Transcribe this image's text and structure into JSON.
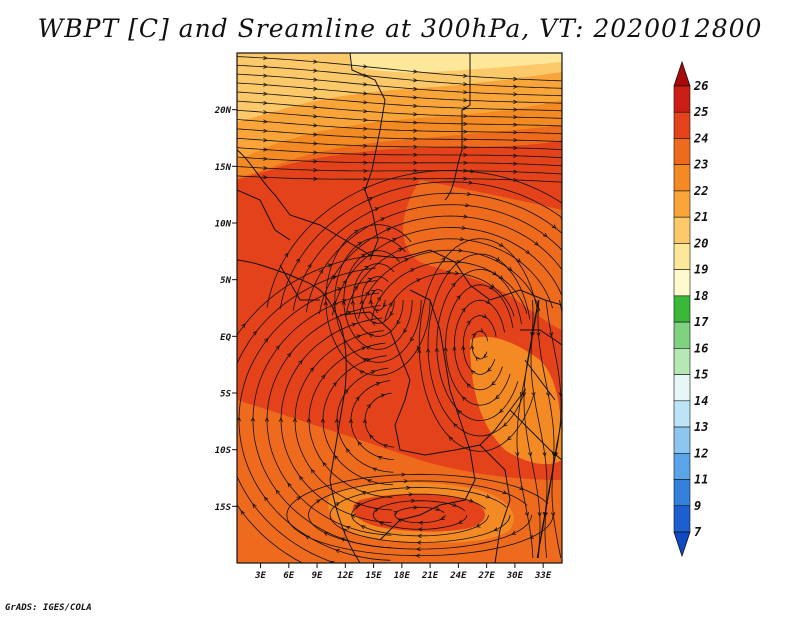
{
  "title": "WBPT [C] and Sreamline at 300hPa, VT: 2020012800",
  "credit": "GrADS: IGES/COLA",
  "colors": {
    "c19": "#fde79a",
    "c20": "#fbc96a",
    "c21": "#f9a53a",
    "c22": "#f48a23",
    "c23": "#ee6a1d",
    "c24": "#e3421a",
    "c25": "#cc1e14",
    "c26": "#a80a0a"
  },
  "chart_data": {
    "type": "map",
    "lat_ticks": [
      "20N",
      "15N",
      "10N",
      "5N",
      "EQ",
      "5S",
      "10S",
      "15S"
    ],
    "lat_values": [
      20,
      15,
      10,
      5,
      0,
      -5,
      -10,
      -15
    ],
    "lon_ticks": [
      "3E",
      "6E",
      "9E",
      "12E",
      "15E",
      "18E",
      "21E",
      "24E",
      "27E",
      "30E",
      "33E"
    ],
    "lon_values": [
      3,
      6,
      9,
      12,
      15,
      18,
      21,
      24,
      27,
      30,
      33
    ],
    "lon_range": [
      0.5,
      35
    ],
    "lat_range": [
      -20,
      25
    ],
    "colorbar": {
      "labels": [
        "26",
        "25",
        "24",
        "23",
        "22",
        "21",
        "20",
        "19",
        "18",
        "17",
        "16",
        "15",
        "14",
        "13",
        "12",
        "11",
        "9",
        "7"
      ],
      "colors": [
        "#a80a0a",
        "#cc1e14",
        "#e3421a",
        "#ee6a1d",
        "#f48a23",
        "#f9a53a",
        "#fbc96a",
        "#fde79a",
        "#fef9cc",
        "#39b839",
        "#7fd27f",
        "#b5e8b5",
        "#e6f7f7",
        "#bde3f7",
        "#8cc6f0",
        "#5aa5e8",
        "#357fdc",
        "#1e5fd0",
        "#1148c4"
      ]
    }
  }
}
